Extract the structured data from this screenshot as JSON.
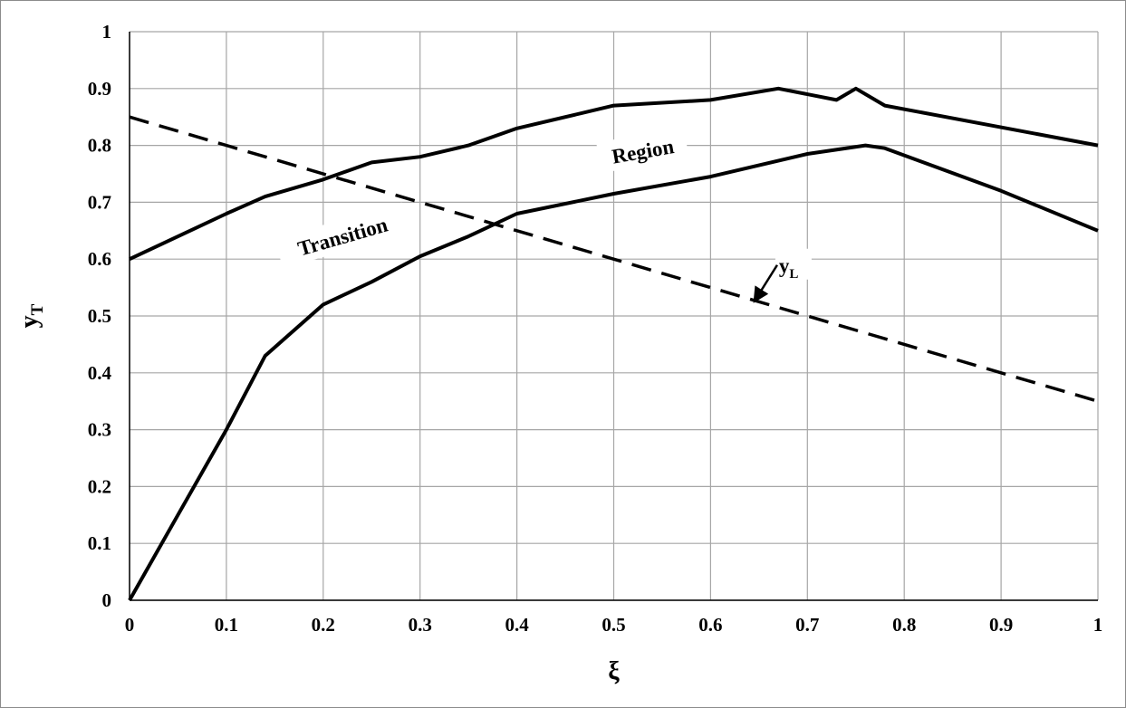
{
  "chart_data": {
    "type": "line",
    "xlabel": "ξ",
    "ylabel": "y",
    "ylabel_subscript": "T",
    "xlim": [
      0,
      1
    ],
    "ylim": [
      0,
      1
    ],
    "x_ticks": [
      "0",
      "0.1",
      "0.2",
      "0.3",
      "0.4",
      "0.5",
      "0.6",
      "0.7",
      "0.8",
      "0.9",
      "1"
    ],
    "y_ticks": [
      "0",
      "0.1",
      "0.2",
      "0.3",
      "0.4",
      "0.5",
      "0.6",
      "0.7",
      "0.8",
      "0.9",
      "1"
    ],
    "grid": true,
    "series": [
      {
        "style": "solid",
        "color": "#000000",
        "points": [
          [
            0,
            0.6
          ],
          [
            0.1,
            0.68
          ],
          [
            0.14,
            0.71
          ],
          [
            0.2,
            0.74
          ],
          [
            0.25,
            0.77
          ],
          [
            0.3,
            0.78
          ],
          [
            0.35,
            0.8
          ],
          [
            0.4,
            0.83
          ],
          [
            0.5,
            0.87
          ],
          [
            0.6,
            0.88
          ],
          [
            0.67,
            0.9
          ],
          [
            0.73,
            0.88
          ],
          [
            0.75,
            0.9
          ],
          [
            0.78,
            0.87
          ],
          [
            1.0,
            0.8
          ]
        ]
      },
      {
        "style": "solid",
        "color": "#000000",
        "points": [
          [
            0,
            0
          ],
          [
            0.05,
            0.15
          ],
          [
            0.1,
            0.3
          ],
          [
            0.14,
            0.43
          ],
          [
            0.2,
            0.52
          ],
          [
            0.25,
            0.56
          ],
          [
            0.3,
            0.605
          ],
          [
            0.35,
            0.64
          ],
          [
            0.4,
            0.68
          ],
          [
            0.5,
            0.715
          ],
          [
            0.6,
            0.745
          ],
          [
            0.7,
            0.785
          ],
          [
            0.76,
            0.8
          ],
          [
            0.78,
            0.795
          ],
          [
            0.9,
            0.72
          ],
          [
            1.0,
            0.65
          ]
        ]
      },
      {
        "name": "y_L",
        "style": "dashed",
        "color": "#000000",
        "points": [
          [
            0,
            0.85
          ],
          [
            1.0,
            0.35
          ]
        ]
      }
    ],
    "annotations": [
      {
        "text": "Transition",
        "x": 0.22,
        "y": 0.64,
        "rotation_deg": -16
      },
      {
        "text": "Region",
        "x": 0.53,
        "y": 0.79,
        "rotation_deg": -10
      },
      {
        "text": "y",
        "subscript": "L",
        "x": 0.68,
        "y": 0.58,
        "arrow_to": [
          0.645,
          0.525
        ]
      }
    ]
  }
}
